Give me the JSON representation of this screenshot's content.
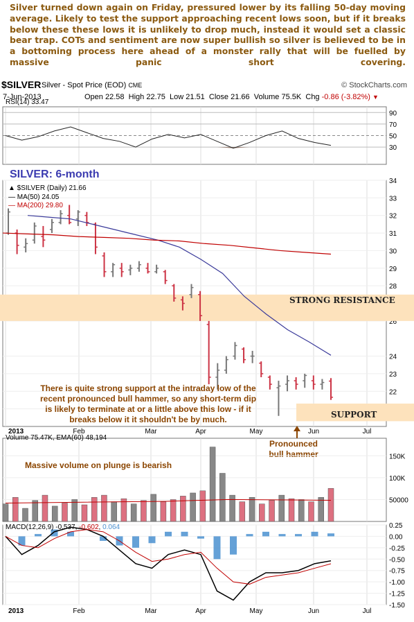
{
  "commentary": "Silver turned down again on Friday, pressured lower by its falling 50-day moving average. Likely to test the support approaching recent lows soon, but if it breaks below these these lows it is unlikely to drop much, instead it would set a classic bear trap. COTs and sentiment are now super bullish so silver is believed to be in a bottoming process here ahead of a monster rally that will be fuelled by massive panic short covering.",
  "header": {
    "symbol": "$SILVER",
    "description": "Silver - Spot Price (EOD)",
    "exchange": "CME",
    "source": "© StockCharts.com",
    "date": "7-Jun-2013",
    "open_label": "Open",
    "open": "22.58",
    "high_label": "High",
    "high": "22.75",
    "low_label": "Low",
    "low": "21.51",
    "close_label": "Close",
    "close": "21.66",
    "volume_label": "Volume",
    "volume": "75.5K",
    "chg_label": "Chg",
    "chg": "-0.86 (-3.82%)"
  },
  "legends": {
    "rsi": "RSI(14) 33.47",
    "price": "$SILVER (Daily) 21.66",
    "ma50": "MA(50) 24.05",
    "ma200": "MA(200) 29.80",
    "volume": "Volume 75.47K, EMA(60) 48,194",
    "macd_prefix": "MACD(12,26,9)",
    "macd_value": "-0.537",
    "signal_value": "-0.602",
    "hist_value": "0.064"
  },
  "annotations": {
    "chart_title": "SILVER: 6-month",
    "resistance": "STRONG RESISTANCE",
    "support": "SUPPORT",
    "support_note": [
      "There is quite strong support at the intraday low of the",
      "recent pronounced bull hammer, so any short-term dip",
      "is likely to terminate at or a little above this low - if it",
      "breaks below it it shouldn't be by much."
    ],
    "volume_note": "Massive volume on plunge is bearish",
    "hammer_note": [
      "Pronounced",
      "bull hammer"
    ]
  },
  "colors": {
    "commentary": "#8b5a10",
    "title_blue": "#3b3bb0",
    "annotation": "#8b4500",
    "band": "#fde2bc",
    "up_bar": "#777777",
    "down_bar": "#cc3344",
    "ma50": "#3a3a9a",
    "ma200": "#c00000",
    "macd_hist": "#4a90d0",
    "rsi_fill": "#8a6a5a"
  },
  "chart_data": {
    "type": "ohlc",
    "title": "SILVER: 6-month",
    "symbol": "$SILVER",
    "x_ticks": [
      "2013",
      "Feb",
      "Mar",
      "Apr",
      "May",
      "Jun",
      "Jul"
    ],
    "x_dates": [
      "2013-01-02",
      "2013-01-07",
      "2013-01-11",
      "2013-01-16",
      "2013-01-22",
      "2013-01-25",
      "2013-01-30",
      "2013-02-04",
      "2013-02-08",
      "2013-02-13",
      "2013-02-19",
      "2013-02-22",
      "2013-02-27",
      "2013-03-04",
      "2013-03-08",
      "2013-03-13",
      "2013-03-18",
      "2013-03-22",
      "2013-03-27",
      "2013-04-02",
      "2013-04-05",
      "2013-04-10",
      "2013-04-12",
      "2013-04-15",
      "2013-04-18",
      "2013-04-23",
      "2013-04-26",
      "2013-05-01",
      "2013-05-06",
      "2013-05-10",
      "2013-05-15",
      "2013-05-17",
      "2013-05-20",
      "2013-05-24",
      "2013-05-30",
      "2013-06-04",
      "2013-06-06",
      "2013-06-07"
    ],
    "price_ylim": [
      20,
      34
    ],
    "price_ticks": [
      21,
      22,
      23,
      24,
      26,
      27,
      28,
      29,
      30,
      31,
      32,
      33,
      34
    ],
    "bands": [
      {
        "name": "STRONG RESISTANCE",
        "low": 26.0,
        "high": 27.5
      },
      {
        "name": "SUPPORT",
        "low": 20.3,
        "high": 21.3
      }
    ],
    "ohlc": [
      {
        "o": 31.0,
        "h": 32.4,
        "l": 30.9,
        "c": 32.2
      },
      {
        "o": 31.0,
        "h": 31.2,
        "l": 29.8,
        "c": 30.3
      },
      {
        "o": 30.2,
        "h": 30.7,
        "l": 29.9,
        "c": 30.4
      },
      {
        "o": 30.6,
        "h": 31.6,
        "l": 30.4,
        "c": 31.4
      },
      {
        "o": 30.8,
        "h": 31.4,
        "l": 30.2,
        "c": 30.6
      },
      {
        "o": 31.2,
        "h": 31.8,
        "l": 31.0,
        "c": 31.6
      },
      {
        "o": 31.6,
        "h": 32.3,
        "l": 31.5,
        "c": 32.1
      },
      {
        "o": 32.0,
        "h": 32.6,
        "l": 31.5,
        "c": 31.6
      },
      {
        "o": 31.8,
        "h": 32.3,
        "l": 31.4,
        "c": 32.2
      },
      {
        "o": 32.0,
        "h": 32.2,
        "l": 31.4,
        "c": 31.6
      },
      {
        "o": 31.5,
        "h": 31.6,
        "l": 29.8,
        "c": 30.2
      },
      {
        "o": 29.7,
        "h": 29.9,
        "l": 28.5,
        "c": 28.8
      },
      {
        "o": 28.8,
        "h": 29.3,
        "l": 28.5,
        "c": 29.2
      },
      {
        "o": 29.0,
        "h": 29.3,
        "l": 28.5,
        "c": 28.8
      },
      {
        "o": 28.9,
        "h": 29.2,
        "l": 28.6,
        "c": 29.0
      },
      {
        "o": 29.0,
        "h": 29.4,
        "l": 28.8,
        "c": 29.2
      },
      {
        "o": 29.0,
        "h": 29.3,
        "l": 28.7,
        "c": 28.8
      },
      {
        "o": 28.8,
        "h": 29.2,
        "l": 28.7,
        "c": 29.0
      },
      {
        "o": 28.8,
        "h": 28.9,
        "l": 28.1,
        "c": 28.3
      },
      {
        "o": 28.0,
        "h": 28.1,
        "l": 27.1,
        "c": 27.3
      },
      {
        "o": 27.2,
        "h": 27.4,
        "l": 26.6,
        "c": 27.0
      },
      {
        "o": 27.5,
        "h": 28.1,
        "l": 27.3,
        "c": 27.9
      },
      {
        "o": 27.5,
        "h": 27.7,
        "l": 26.0,
        "c": 26.3
      },
      {
        "o": 25.8,
        "h": 26.0,
        "l": 22.4,
        "c": 22.8
      },
      {
        "o": 22.8,
        "h": 23.6,
        "l": 22.1,
        "c": 23.2
      },
      {
        "o": 23.2,
        "h": 24.0,
        "l": 23.0,
        "c": 23.8
      },
      {
        "o": 24.0,
        "h": 24.8,
        "l": 23.8,
        "c": 24.6
      },
      {
        "o": 24.4,
        "h": 24.5,
        "l": 23.6,
        "c": 23.8
      },
      {
        "o": 24.0,
        "h": 24.3,
        "l": 23.6,
        "c": 24.0
      },
      {
        "o": 23.6,
        "h": 23.7,
        "l": 22.8,
        "c": 23.0
      },
      {
        "o": 22.8,
        "h": 22.9,
        "l": 22.1,
        "c": 22.4
      },
      {
        "o": 22.2,
        "h": 22.6,
        "l": 20.6,
        "c": 22.3
      },
      {
        "o": 22.4,
        "h": 22.9,
        "l": 22.0,
        "c": 22.6
      },
      {
        "o": 22.6,
        "h": 22.8,
        "l": 22.1,
        "c": 22.4
      },
      {
        "o": 22.6,
        "h": 23.0,
        "l": 22.2,
        "c": 22.9
      },
      {
        "o": 22.6,
        "h": 22.9,
        "l": 22.1,
        "c": 22.4
      },
      {
        "o": 22.4,
        "h": 22.7,
        "l": 22.1,
        "c": 22.5
      },
      {
        "o": 22.58,
        "h": 22.75,
        "l": 21.51,
        "c": 21.66
      }
    ],
    "ma50": [
      32.0,
      31.9,
      31.8,
      31.5,
      31.2,
      30.9,
      30.6,
      30.2,
      29.5,
      28.7,
      27.4,
      26.4,
      25.5,
      24.8,
      24.05
    ],
    "ma200": [
      31.0,
      30.95,
      30.9,
      30.8,
      30.75,
      30.7,
      30.6,
      30.55,
      30.4,
      30.3,
      30.15,
      30.0,
      29.9,
      29.8
    ],
    "rsi": {
      "ylim": [
        0,
        100
      ],
      "ticks": [
        30,
        50,
        70,
        90
      ],
      "values": [
        50,
        42,
        48,
        58,
        65,
        55,
        45,
        40,
        30,
        44,
        52,
        46,
        52,
        40,
        28,
        38,
        50,
        58,
        45,
        38,
        33
      ]
    },
    "volume": {
      "ticks": [
        "50000",
        "100K",
        "150K"
      ],
      "values": [
        40000,
        55000,
        30000,
        48000,
        60000,
        35000,
        42000,
        50000,
        38000,
        55000,
        60000,
        45000,
        52000,
        40000,
        48000,
        62000,
        45000,
        50000,
        58000,
        65000,
        70000,
        170000,
        110000,
        60000,
        45000,
        55000,
        40000,
        48000,
        60000,
        52000,
        50000,
        45000,
        55000,
        75500
      ]
    },
    "macd": {
      "ylim": [
        -1.5,
        0.25
      ],
      "ticks": [
        0.25,
        0.0,
        -0.25,
        -0.5,
        -0.75,
        -1.0,
        -1.25,
        -1.5
      ],
      "macd": [
        0.0,
        -0.4,
        -0.2,
        0.1,
        0.2,
        0.15,
        0.0,
        -0.3,
        -0.6,
        -0.7,
        -0.4,
        -0.3,
        -0.4,
        -1.2,
        -1.4,
        -1.0,
        -0.8,
        -0.8,
        -0.75,
        -0.6,
        -0.537
      ],
      "signal": [
        0.0,
        -0.2,
        -0.25,
        -0.05,
        0.1,
        0.15,
        0.1,
        -0.1,
        -0.35,
        -0.55,
        -0.5,
        -0.4,
        -0.35,
        -0.7,
        -1.0,
        -1.05,
        -0.9,
        -0.85,
        -0.8,
        -0.7,
        -0.602
      ],
      "histogram": [
        0.0,
        -0.2,
        0.05,
        0.15,
        0.1,
        0.0,
        -0.1,
        -0.2,
        -0.25,
        -0.15,
        0.1,
        0.1,
        -0.05,
        -0.5,
        -0.4,
        0.05,
        0.1,
        0.05,
        0.05,
        0.1,
        0.064
      ]
    }
  }
}
